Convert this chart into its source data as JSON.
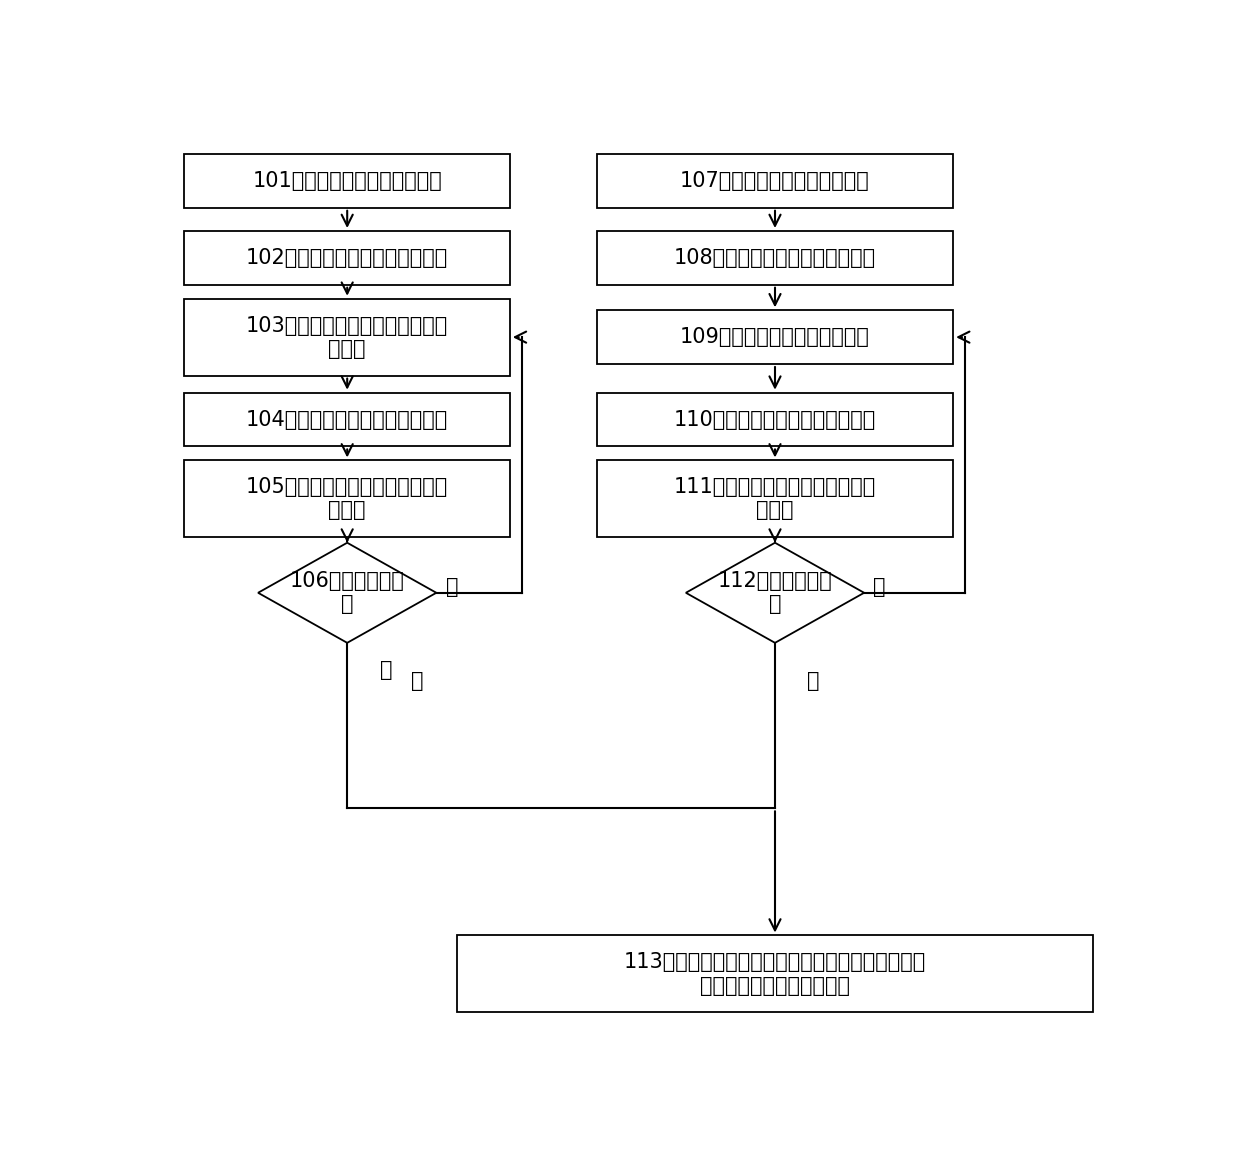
{
  "bg_color": "#ffffff",
  "box_color": "#ffffff",
  "box_edge_color": "#000000",
  "text_color": "#000000",
  "arrow_color": "#000000",
  "font_size": 15,
  "nodes": {
    "101": {
      "text": "101，测试人员手动打开干扰源",
      "col": "left",
      "row": 1,
      "lines": 1
    },
    "102": {
      "text": "102，测试人员将终端放入屏蔽箱",
      "col": "left",
      "row": 2,
      "lines": 1
    },
    "103": {
      "text": "103，测试人员通过电脑手动配置\n综测仪",
      "col": "left",
      "row": 3,
      "lines": 2
    },
    "104": {
      "text": "104，终端与综测仪建立信令连接",
      "col": "left",
      "row": 4,
      "lines": 1
    },
    "105": {
      "text": "105，终端获取第一信号接收强度\n并记录",
      "col": "left",
      "row": 5,
      "lines": 2
    },
    "106": {
      "text": "106，是否测试完\n成",
      "col": "left",
      "row": 6,
      "lines": 2,
      "shape": "diamond"
    },
    "107": {
      "text": "107，测试人员手动关闭干扰源",
      "col": "right",
      "row": 1,
      "lines": 1
    },
    "108": {
      "text": "108，测试人员将终端放入屏蔽箱",
      "col": "right",
      "row": 2,
      "lines": 1
    },
    "109": {
      "text": "109，测试人员手动配置综测仪",
      "col": "right",
      "row": 3,
      "lines": 1
    },
    "110": {
      "text": "110，终端与综测仪建立信令连接",
      "col": "right",
      "row": 4,
      "lines": 1
    },
    "111": {
      "text": "111，终端获取第二信号接收强度\n并记录",
      "col": "right",
      "row": 5,
      "lines": 2
    },
    "112": {
      "text": "112，是否测试完\n成",
      "col": "right",
      "row": 6,
      "lines": 2,
      "shape": "diamond"
    },
    "113": {
      "text": "113，根据第一信号接收强度和第二信号接收强\n度，确定干扰源对应的干扰强度",
      "col": "bottom",
      "lines": 2
    }
  }
}
